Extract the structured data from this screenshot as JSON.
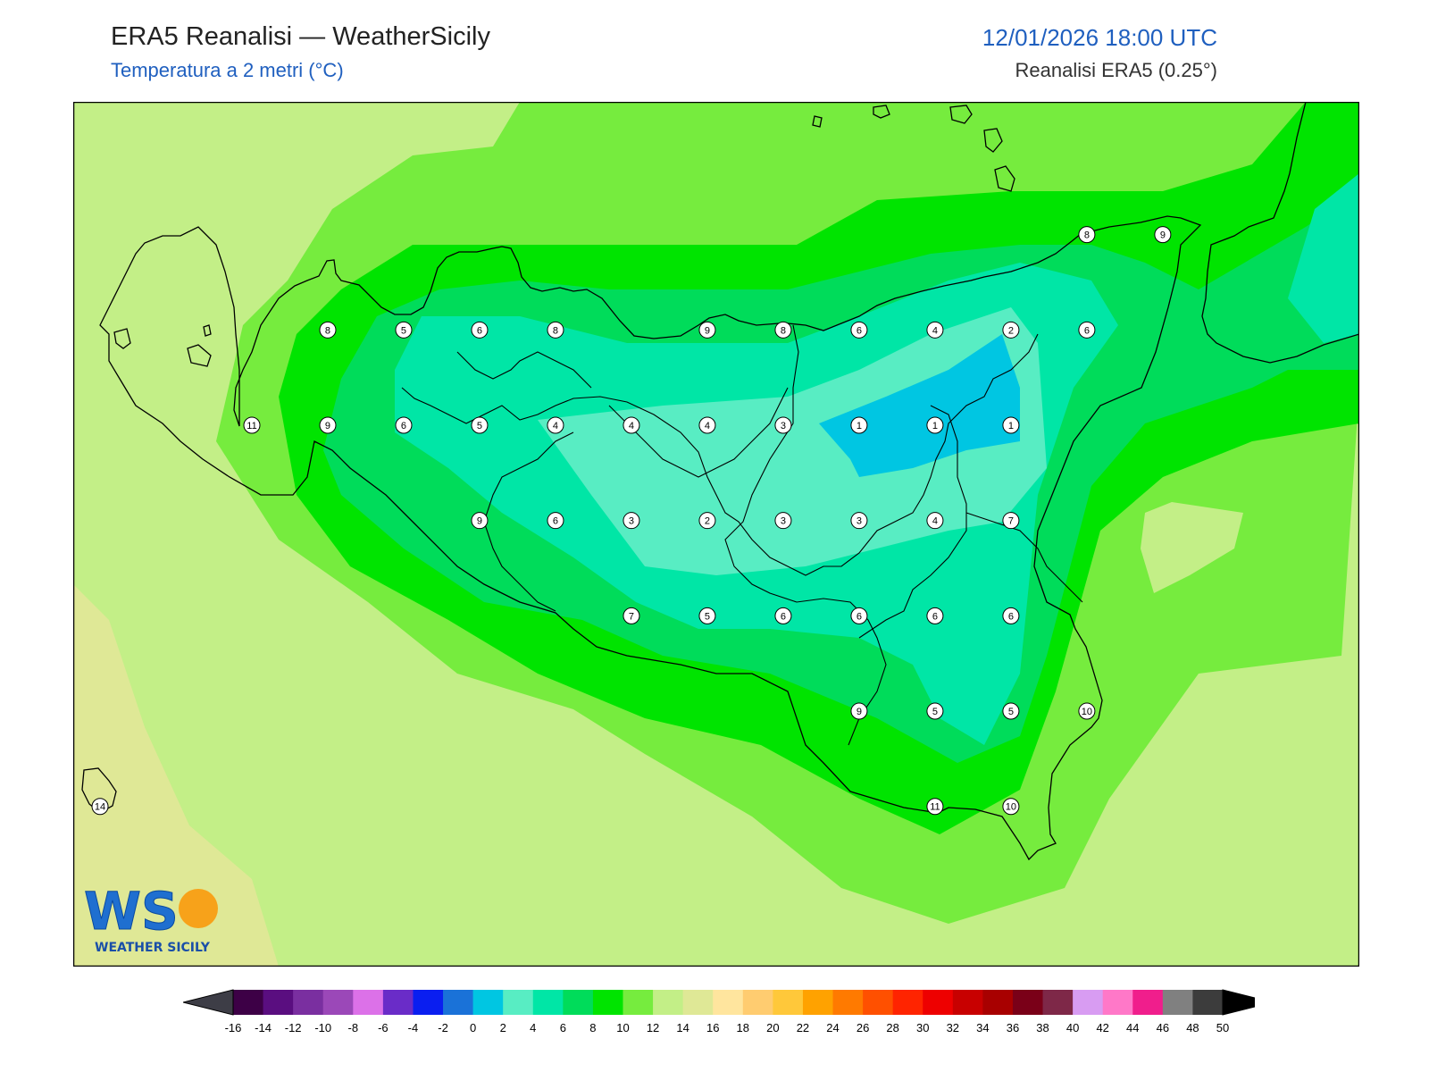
{
  "header": {
    "title": "ERA5 Reanalisi — WeatherSicily",
    "subtitle": "Temperatura a 2 metri (°C)",
    "datetime": "12/01/2026 18:00 UTC",
    "source": "Reanalisi ERA5 (0.25°)"
  },
  "logo": {
    "letters": "WS",
    "name": "WEATHER SICILY"
  },
  "colors": {
    "c14": "#dfe896",
    "c12": "#c3ef87",
    "c10": "#76ec3e",
    "c8": "#00e400",
    "c6": "#00dc5a",
    "c4": "#00e6a6",
    "c2": "#58edc3",
    "c0": "#00c6e2",
    "coast": "#000000"
  },
  "colorbar": {
    "labels": [
      "-16",
      "-14",
      "-12",
      "-10",
      "-8",
      "-6",
      "-4",
      "-2",
      "0",
      "2",
      "4",
      "6",
      "8",
      "10",
      "12",
      "14",
      "16",
      "18",
      "20",
      "22",
      "24",
      "26",
      "28",
      "30",
      "32",
      "34",
      "36",
      "38",
      "40",
      "42",
      "44",
      "46",
      "48",
      "50"
    ],
    "colors": [
      "#3d0046",
      "#5a0e80",
      "#7a2fa0",
      "#9b48b8",
      "#dc71e8",
      "#6a2cc8",
      "#0a1ef0",
      "#1a72d8",
      "#00c6e2",
      "#58edc3",
      "#00e6a6",
      "#00dc5a",
      "#00e400",
      "#76ec3e",
      "#c3ef87",
      "#dfe896",
      "#ffe59e",
      "#ffcc70",
      "#ffc83a",
      "#ffa200",
      "#ff7a00",
      "#ff5000",
      "#ff2400",
      "#ee0000",
      "#c80000",
      "#a80000",
      "#7a0018",
      "#7e2848",
      "#d89cf2",
      "#ff78c8",
      "#f01e8c",
      "#808080",
      "#3c3c3c"
    ]
  },
  "stations": [
    {
      "t": "8",
      "lon": 12.8,
      "lat": 38.5
    },
    {
      "t": "5",
      "lon": 13.1,
      "lat": 38.5
    },
    {
      "t": "6",
      "lon": 13.4,
      "lat": 38.5
    },
    {
      "t": "8",
      "lon": 13.7,
      "lat": 38.5
    },
    {
      "t": "9",
      "lon": 14.3,
      "lat": 38.5
    },
    {
      "t": "8",
      "lon": 14.6,
      "lat": 38.5
    },
    {
      "t": "6",
      "lon": 14.9,
      "lat": 38.5
    },
    {
      "t": "4",
      "lon": 15.2,
      "lat": 38.5
    },
    {
      "t": "2",
      "lon": 15.5,
      "lat": 38.5
    },
    {
      "t": "6",
      "lon": 15.8,
      "lat": 38.5
    },
    {
      "t": "8",
      "lon": 15.8,
      "lat": 38.8
    },
    {
      "t": "9",
      "lon": 16.1,
      "lat": 38.8
    },
    {
      "t": "11",
      "lon": 12.5,
      "lat": 38.2
    },
    {
      "t": "9",
      "lon": 12.8,
      "lat": 38.2
    },
    {
      "t": "6",
      "lon": 13.1,
      "lat": 38.2
    },
    {
      "t": "5",
      "lon": 13.4,
      "lat": 38.2
    },
    {
      "t": "4",
      "lon": 13.7,
      "lat": 38.2
    },
    {
      "t": "4",
      "lon": 14.0,
      "lat": 38.2
    },
    {
      "t": "4",
      "lon": 14.3,
      "lat": 38.2
    },
    {
      "t": "3",
      "lon": 14.6,
      "lat": 38.2
    },
    {
      "t": "1",
      "lon": 14.9,
      "lat": 38.2
    },
    {
      "t": "1",
      "lon": 15.2,
      "lat": 38.2
    },
    {
      "t": "1",
      "lon": 15.5,
      "lat": 38.2
    },
    {
      "t": "9",
      "lon": 13.4,
      "lat": 37.9
    },
    {
      "t": "6",
      "lon": 13.7,
      "lat": 37.9
    },
    {
      "t": "3",
      "lon": 14.0,
      "lat": 37.9
    },
    {
      "t": "2",
      "lon": 14.3,
      "lat": 37.9
    },
    {
      "t": "3",
      "lon": 14.6,
      "lat": 37.9
    },
    {
      "t": "3",
      "lon": 14.9,
      "lat": 37.9
    },
    {
      "t": "4",
      "lon": 15.2,
      "lat": 37.9
    },
    {
      "t": "7",
      "lon": 15.5,
      "lat": 37.9
    },
    {
      "t": "7",
      "lon": 14.0,
      "lat": 37.6
    },
    {
      "t": "5",
      "lon": 14.3,
      "lat": 37.6
    },
    {
      "t": "6",
      "lon": 14.6,
      "lat": 37.6
    },
    {
      "t": "6",
      "lon": 14.9,
      "lat": 37.6
    },
    {
      "t": "6",
      "lon": 15.2,
      "lat": 37.6
    },
    {
      "t": "6",
      "lon": 15.5,
      "lat": 37.6
    },
    {
      "t": "9",
      "lon": 14.9,
      "lat": 37.3
    },
    {
      "t": "5",
      "lon": 15.2,
      "lat": 37.3
    },
    {
      "t": "5",
      "lon": 15.5,
      "lat": 37.3
    },
    {
      "t": "10",
      "lon": 15.8,
      "lat": 37.3
    },
    {
      "t": "11",
      "lon": 15.2,
      "lat": 37.0
    },
    {
      "t": "10",
      "lon": 15.5,
      "lat": 37.0
    },
    {
      "t": "14",
      "lon": 11.9,
      "lat": 37.0
    }
  ]
}
